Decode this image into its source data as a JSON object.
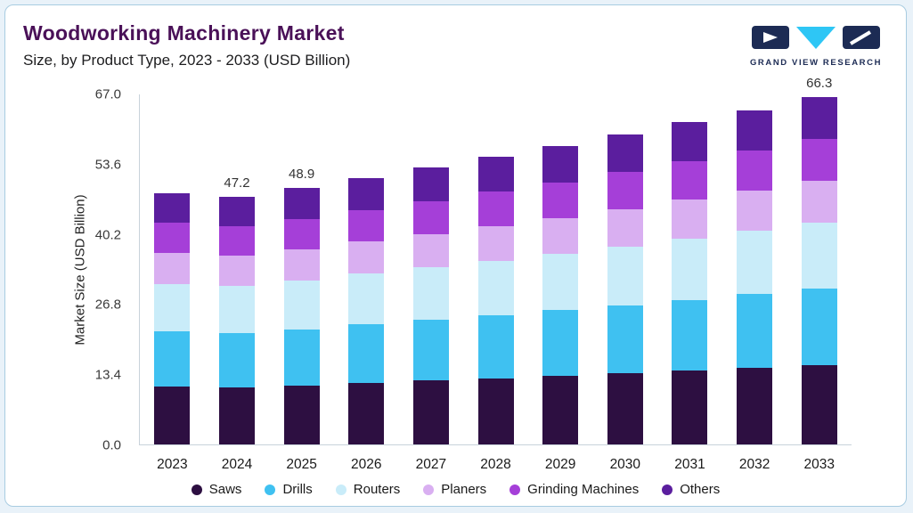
{
  "header": {
    "title": "Woodworking Machinery Market",
    "subtitle": "Size, by Product Type, 2023 - 2033 (USD Billion)",
    "brand": "GRAND VIEW RESEARCH"
  },
  "colors": {
    "title_text": "#4a1158",
    "brand_navy": "#1c2b54",
    "brand_cyan": "#2ec6f5",
    "card_border": "#a8cce1",
    "page_background": "#e9f2f9",
    "axis_text": "#3a3a3a"
  },
  "chart_data": {
    "type": "bar",
    "stacked": true,
    "title": "Woodworking Machinery Market",
    "subtitle": "Size, by Product Type, 2023 - 2033 (USD Billion)",
    "xlabel": "",
    "ylabel": "Market Size (USD Billion)",
    "ylim": [
      0,
      67.0
    ],
    "yticks": [
      0.0,
      13.4,
      26.8,
      40.2,
      53.6,
      67.0
    ],
    "grid": false,
    "legend_position": "bottom",
    "categories": [
      "2023",
      "2024",
      "2025",
      "2026",
      "2027",
      "2028",
      "2029",
      "2030",
      "2031",
      "2032",
      "2033"
    ],
    "series": [
      {
        "name": "Saws",
        "color": "#2d0f41",
        "values": [
          11.0,
          10.9,
          11.2,
          11.7,
          12.2,
          12.6,
          13.1,
          13.6,
          14.1,
          14.7,
          15.2
        ]
      },
      {
        "name": "Drills",
        "color": "#3fc1f1",
        "values": [
          10.6,
          10.4,
          10.8,
          11.2,
          11.6,
          12.1,
          12.5,
          13.0,
          13.5,
          14.0,
          14.6
        ]
      },
      {
        "name": "Routers",
        "color": "#c9ecf9",
        "values": [
          9.1,
          9.0,
          9.3,
          9.7,
          10.1,
          10.4,
          10.8,
          11.2,
          11.7,
          12.1,
          12.6
        ]
      },
      {
        "name": "Planers",
        "color": "#d9aff1",
        "values": [
          5.8,
          5.7,
          5.9,
          6.1,
          6.3,
          6.6,
          6.8,
          7.1,
          7.4,
          7.7,
          8.0
        ]
      },
      {
        "name": "Grinding Machines",
        "color": "#a53fd8",
        "values": [
          5.8,
          5.7,
          5.9,
          6.1,
          6.3,
          6.6,
          6.8,
          7.1,
          7.4,
          7.7,
          8.0
        ]
      },
      {
        "name": "Others",
        "color": "#5b1e9e",
        "values": [
          5.7,
          5.5,
          5.8,
          6.1,
          6.4,
          6.6,
          7.0,
          7.2,
          7.4,
          7.6,
          7.9
        ]
      }
    ],
    "totals": [
      48.0,
      47.2,
      48.9,
      50.9,
      52.9,
      54.9,
      57.0,
      59.2,
      61.5,
      63.8,
      66.3
    ],
    "bar_labels": [
      "",
      "47.2",
      "48.9",
      "",
      "",
      "",
      "",
      "",
      "",
      "",
      "66.3"
    ]
  }
}
